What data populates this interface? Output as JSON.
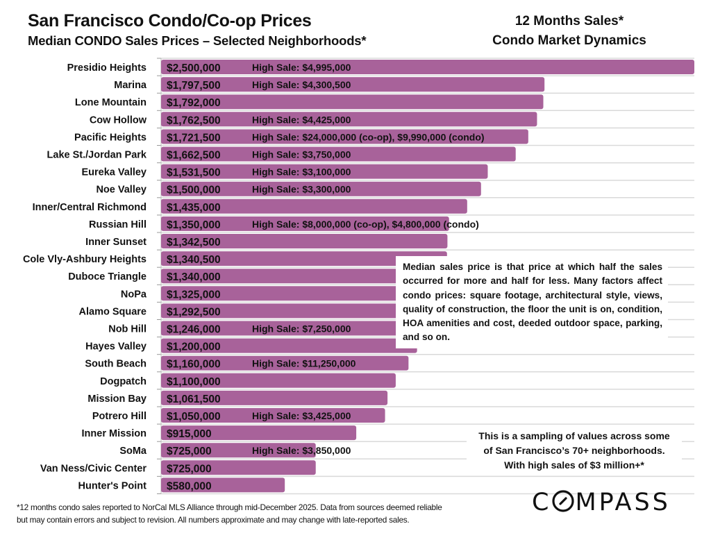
{
  "header": {
    "title": "San Francisco Condo/Co-op Prices",
    "subtitle": "Median CONDO Sales Prices – Selected Neighborhoods*",
    "right_title_line1": "12 Months Sales*",
    "right_title_line2": "Condo Market Dynamics"
  },
  "colors": {
    "bar": "#A8629A",
    "gridline": "#D9D9D9",
    "text": "#111111"
  },
  "chart_data": {
    "type": "bar",
    "orientation": "horizontal",
    "title": "Median CONDO Sales Prices – Selected Neighborhoods*",
    "xlabel": "",
    "ylabel": "",
    "xlim": [
      0,
      2500000
    ],
    "grid": true,
    "categories": [
      "Presidio Heights",
      "Marina",
      "Lone Mountain",
      "Cow Hollow",
      "Pacific Heights",
      "Lake St./Jordan Park",
      "Eureka Valley",
      "Noe Valley",
      "Inner/Central Richmond",
      "Russian Hill",
      "Inner Sunset",
      "Cole Vly-Ashbury Heights",
      "Duboce Triangle",
      "NoPa",
      "Alamo Square",
      "Nob Hill",
      "Hayes Valley",
      "South Beach",
      "Dogpatch",
      "Mission Bay",
      "Potrero Hill",
      "Inner Mission",
      "SoMa",
      "Van Ness/Civic Center",
      "Hunter's Point"
    ],
    "values": [
      2500000,
      1797500,
      1792000,
      1762500,
      1721500,
      1662500,
      1531500,
      1500000,
      1435000,
      1350000,
      1342500,
      1340500,
      1340000,
      1325000,
      1292500,
      1246000,
      1200000,
      1160000,
      1100000,
      1061500,
      1050000,
      915000,
      725000,
      725000,
      580000
    ],
    "value_labels": [
      "$2,500,000",
      "$1,797,500",
      "$1,792,000",
      "$1,762,500",
      "$1,721,500",
      "$1,662,500",
      "$1,531,500",
      "$1,500,000",
      "$1,435,000",
      "$1,350,000",
      "$1,342,500",
      "$1,340,500",
      "$1,340,000",
      "$1,325,000",
      "$1,292,500",
      "$1,246,000",
      "$1,200,000",
      "$1,160,000",
      "$1,100,000",
      "$1,061,500",
      "$1,050,000",
      "$915,000",
      "$725,000",
      "$725,000",
      "$580,000"
    ],
    "annotations": [
      "High Sale:  $4,995,000",
      "High Sale:  $4,300,500",
      "",
      "High Sale:  $4,425,000",
      "High Sale:  $24,000,000 (co-op), $9,990,000 (condo)",
      "High Sale:  $3,750,000",
      "High Sale:  $3,100,000",
      "High Sale:  $3,300,000",
      "",
      "High Sale:  $8,000,000 (co-op), $4,800,000 (condo)",
      "",
      "",
      "",
      "",
      "",
      "High Sale:  $7,250,000",
      "",
      "High Sale:  $11,250,000",
      "",
      "",
      "High Sale:  $3,425,000",
      "",
      "High Sale:  $3,850,000",
      "",
      ""
    ]
  },
  "notes": {
    "median_explanation": "Median sales price is that price at which half the sales occurred for more and half for less. Many factors affect condo prices: square footage, architectural style, views, quality of construction, the floor the unit is on, condition, HOA amenities and cost, deeded outdoor space, parking, and so on.",
    "sampling_line1": "This is a sampling of values across some",
    "sampling_line2": "of San Francisco’s 70+ neighborhoods.",
    "sampling_line3": "With high sales of $3 million+*"
  },
  "footer": {
    "line1": "*12 months condo sales reported to NorCal MLS Alliance through mid-December 2025. Data from sources deemed reliable",
    "line2": "but may contain errors and subject to revision. All numbers approximate and may change with late-reported sales."
  },
  "logo": {
    "text_prefix": "C",
    "text_o": "O",
    "text_suffix": "MPASS"
  }
}
